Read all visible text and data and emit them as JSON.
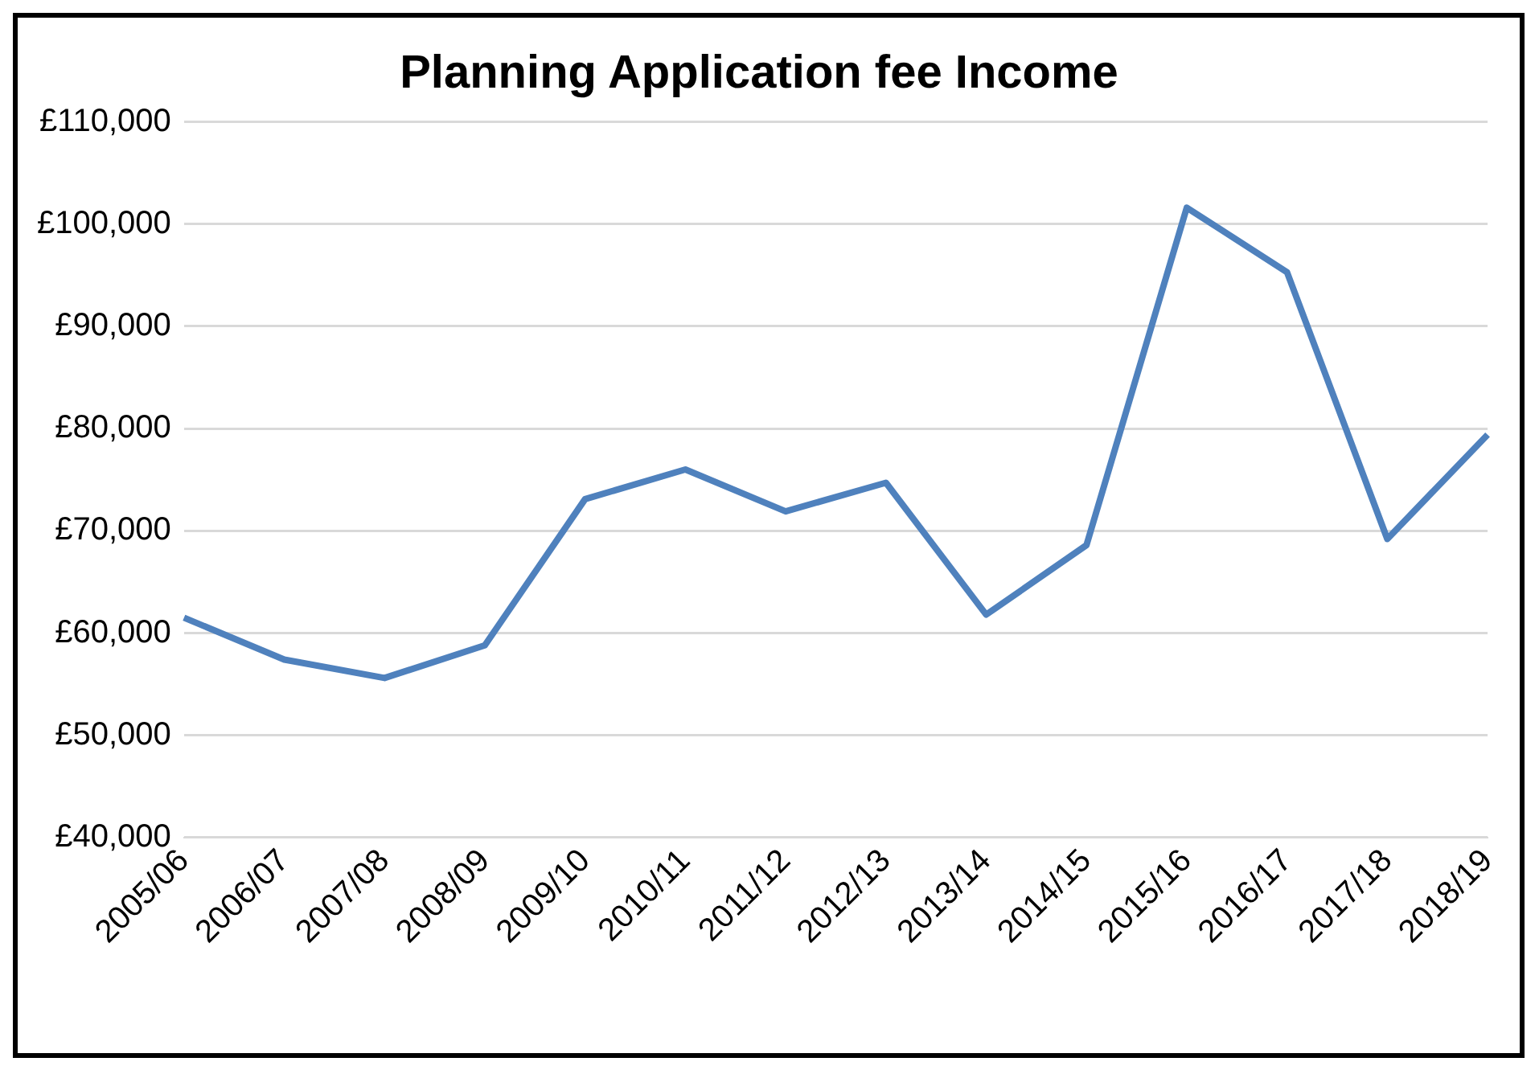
{
  "chart_data": {
    "type": "line",
    "title": "Planning Application fee Income",
    "categories": [
      "2005/06",
      "2006/07",
      "2007/08",
      "2008/09",
      "2009/10",
      "2010/11",
      "2011/12",
      "2012/13",
      "2013/14",
      "2014/15",
      "2015/16",
      "2016/17",
      "2017/18",
      "2018/19"
    ],
    "series": [
      {
        "color": "#4f81bd",
        "values": [
          61500,
          57400,
          55600,
          58800,
          73100,
          76000,
          71900,
          74700,
          61800,
          68600,
          101600,
          95300,
          69200,
          79400
        ]
      }
    ],
    "ylim": [
      40000,
      110000
    ],
    "yticks": [
      {
        "value": 40000,
        "label": "£40,000"
      },
      {
        "value": 50000,
        "label": "£50,000"
      },
      {
        "value": 60000,
        "label": "£60,000"
      },
      {
        "value": 70000,
        "label": "£70,000"
      },
      {
        "value": 80000,
        "label": "£80,000"
      },
      {
        "value": 90000,
        "label": "£90,000"
      },
      {
        "value": 100000,
        "label": "£100,000"
      },
      {
        "value": 110000,
        "label": "£110,000"
      }
    ],
    "grid": "y",
    "marker": "none",
    "line_style": "solid"
  }
}
